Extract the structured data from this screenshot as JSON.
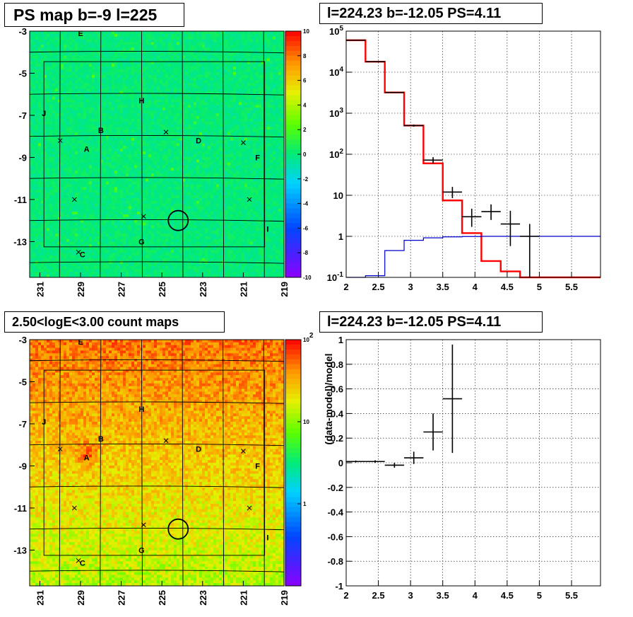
{
  "chart_data": [
    {
      "type": "heatmap",
      "title": "PS map b=-9 l=225",
      "x_ticks": [
        "231",
        "229",
        "227",
        "225",
        "223",
        "221",
        "219"
      ],
      "y_ticks": [
        "-3",
        "-5",
        "-7",
        "-9",
        "-11",
        "-13"
      ],
      "xlim": [
        231.5,
        219
      ],
      "ylim": [
        -14.7,
        -3
      ],
      "colorbar": {
        "ticks": [
          "10",
          "8",
          "6",
          "4",
          "2",
          "0",
          "-2",
          "-4",
          "-6",
          "-8",
          "-10"
        ],
        "min": -10,
        "max": 10,
        "scale": "linear"
      },
      "background_level": 0.5,
      "labels": [
        {
          "text": "E",
          "l": 229.0,
          "b": -3.1
        },
        {
          "text": "H",
          "l": 226.0,
          "b": -6.3
        },
        {
          "text": "J",
          "l": 230.8,
          "b": -6.9
        },
        {
          "text": "B",
          "l": 228.0,
          "b": -7.7
        },
        {
          "text": "D",
          "l": 223.2,
          "b": -8.2
        },
        {
          "text": "A",
          "l": 228.7,
          "b": -8.6
        },
        {
          "text": "F",
          "l": 220.3,
          "b": -9.0
        },
        {
          "text": "I",
          "l": 219.8,
          "b": -12.4
        },
        {
          "text": "G",
          "l": 226.0,
          "b": -13.0
        },
        {
          "text": "C",
          "l": 228.9,
          "b": -13.6
        }
      ],
      "markers": [
        {
          "l": 230.0,
          "b": -8.2
        },
        {
          "l": 224.8,
          "b": -7.8
        },
        {
          "l": 221.0,
          "b": -8.3
        },
        {
          "l": 229.3,
          "b": -11.0
        },
        {
          "l": 220.7,
          "b": -11.0
        },
        {
          "l": 225.9,
          "b": -11.8
        },
        {
          "l": 229.1,
          "b": -13.5
        }
      ],
      "circle": {
        "l": 224.2,
        "b": -12.0
      }
    },
    {
      "type": "line",
      "title": "l=224.23 b=-12.05 PS=4.11",
      "x_ticks": [
        "2",
        "2.5",
        "3",
        "3.5",
        "4",
        "4.5",
        "5",
        "5.5"
      ],
      "y_ticks": [
        "10^5",
        "10^4",
        "10^3",
        "10^2",
        "10",
        "1",
        "10^-1"
      ],
      "xlim": [
        2,
        5.95
      ],
      "ylim": [
        0.1,
        100000
      ],
      "yscale": "log",
      "grid": true,
      "series": [
        {
          "color": "#ff0000",
          "edges": [
            2.0,
            2.3,
            2.6,
            2.9,
            3.2,
            3.5,
            3.8,
            4.1,
            4.4,
            4.7,
            5.0,
            5.95
          ],
          "values": [
            60000,
            18000,
            3200,
            500,
            60,
            7.5,
            1.2,
            0.25,
            0.14,
            0.1,
            0.1
          ]
        },
        {
          "color": "#0000cc",
          "edges": [
            2.0,
            2.3,
            2.6,
            2.9,
            3.2,
            3.5,
            3.8,
            4.1,
            4.4,
            4.7,
            5.0,
            5.95
          ],
          "values": [
            0.1,
            0.11,
            0.45,
            0.8,
            0.92,
            0.97,
            0.99,
            1,
            1,
            1,
            1
          ]
        }
      ],
      "points": [
        {
          "x": 2.15,
          "y": 60000,
          "xerr": 0.15,
          "ylo": 59000,
          "yhi": 61000
        },
        {
          "x": 2.45,
          "y": 18000,
          "xerr": 0.15,
          "ylo": 17500,
          "yhi": 18500
        },
        {
          "x": 2.75,
          "y": 3200,
          "xerr": 0.15,
          "ylo": 3100,
          "yhi": 3300
        },
        {
          "x": 3.05,
          "y": 500,
          "xerr": 0.15,
          "ylo": 470,
          "yhi": 530
        },
        {
          "x": 3.35,
          "y": 72,
          "xerr": 0.15,
          "ylo": 60,
          "yhi": 85
        },
        {
          "x": 3.65,
          "y": 12,
          "xerr": 0.15,
          "ylo": 8.5,
          "yhi": 16
        },
        {
          "x": 3.95,
          "y": 3,
          "xerr": 0.15,
          "ylo": 1.7,
          "yhi": 4.7
        },
        {
          "x": 4.25,
          "y": 4,
          "xerr": 0.15,
          "ylo": 2.5,
          "yhi": 6
        },
        {
          "x": 4.55,
          "y": 2,
          "xerr": 0.15,
          "ylo": 0.58,
          "yhi": 4.2
        },
        {
          "x": 4.85,
          "y": 1,
          "xerr": 0.15,
          "ylo": 0.1,
          "yhi": 2
        }
      ]
    },
    {
      "type": "heatmap",
      "title": "2.50<logE<3.00 count maps",
      "x_ticks": [
        "231",
        "229",
        "227",
        "225",
        "223",
        "221",
        "219"
      ],
      "y_ticks": [
        "-3",
        "-5",
        "-7",
        "-9",
        "-11",
        "-13"
      ],
      "xlim": [
        231.5,
        219
      ],
      "ylim": [
        -14.7,
        -3
      ],
      "colorbar": {
        "ticks": [
          "10^2",
          "10",
          "1"
        ],
        "min": 0.1,
        "max": 100,
        "scale": "log"
      },
      "labels": [
        {
          "text": "E",
          "l": 229.0,
          "b": -3.1
        },
        {
          "text": "H",
          "l": 226.0,
          "b": -6.3
        },
        {
          "text": "J",
          "l": 230.8,
          "b": -6.9
        },
        {
          "text": "B",
          "l": 228.0,
          "b": -7.7
        },
        {
          "text": "D",
          "l": 223.2,
          "b": -8.2
        },
        {
          "text": "A",
          "l": 228.7,
          "b": -8.6
        },
        {
          "text": "F",
          "l": 220.3,
          "b": -9.0
        },
        {
          "text": "I",
          "l": 219.8,
          "b": -12.4
        },
        {
          "text": "G",
          "l": 226.0,
          "b": -13.0
        },
        {
          "text": "C",
          "l": 228.9,
          "b": -13.6
        }
      ],
      "markers": [
        {
          "l": 230.0,
          "b": -8.2
        },
        {
          "l": 224.8,
          "b": -7.8
        },
        {
          "l": 221.0,
          "b": -8.3
        },
        {
          "l": 229.3,
          "b": -11.0
        },
        {
          "l": 220.7,
          "b": -11.0
        },
        {
          "l": 225.9,
          "b": -11.8
        },
        {
          "l": 229.1,
          "b": -13.5
        }
      ],
      "circle": {
        "l": 224.2,
        "b": -12.0
      },
      "hotspot": {
        "l": 228.7,
        "b": -8.4
      }
    },
    {
      "type": "scatter",
      "title": "l=224.23 b=-12.05 PS=4.11",
      "ylabel": "(data-model)/model",
      "x_ticks": [
        "2",
        "2.5",
        "3",
        "3.5",
        "4",
        "4.5",
        "5",
        "5.5"
      ],
      "y_ticks": [
        "1",
        "0.8",
        "0.6",
        "0.4",
        "0.2",
        "0",
        "-0.2",
        "-0.4",
        "-0.6",
        "-0.8",
        "-1"
      ],
      "xlim": [
        2,
        5.95
      ],
      "ylim": [
        -1,
        1
      ],
      "grid": true,
      "points": [
        {
          "x": 2.15,
          "y": 0.01,
          "xerr": 0.15,
          "yerr": 0.008
        },
        {
          "x": 2.45,
          "y": 0.01,
          "xerr": 0.15,
          "yerr": 0.01
        },
        {
          "x": 2.75,
          "y": -0.02,
          "xerr": 0.15,
          "yerr": 0.02
        },
        {
          "x": 3.05,
          "y": 0.04,
          "xerr": 0.15,
          "yerr": 0.05
        },
        {
          "x": 3.35,
          "y": 0.25,
          "xerr": 0.15,
          "yerr": 0.15
        },
        {
          "x": 3.65,
          "y": 0.52,
          "xerr": 0.15,
          "yerr": 0.44
        }
      ]
    }
  ]
}
